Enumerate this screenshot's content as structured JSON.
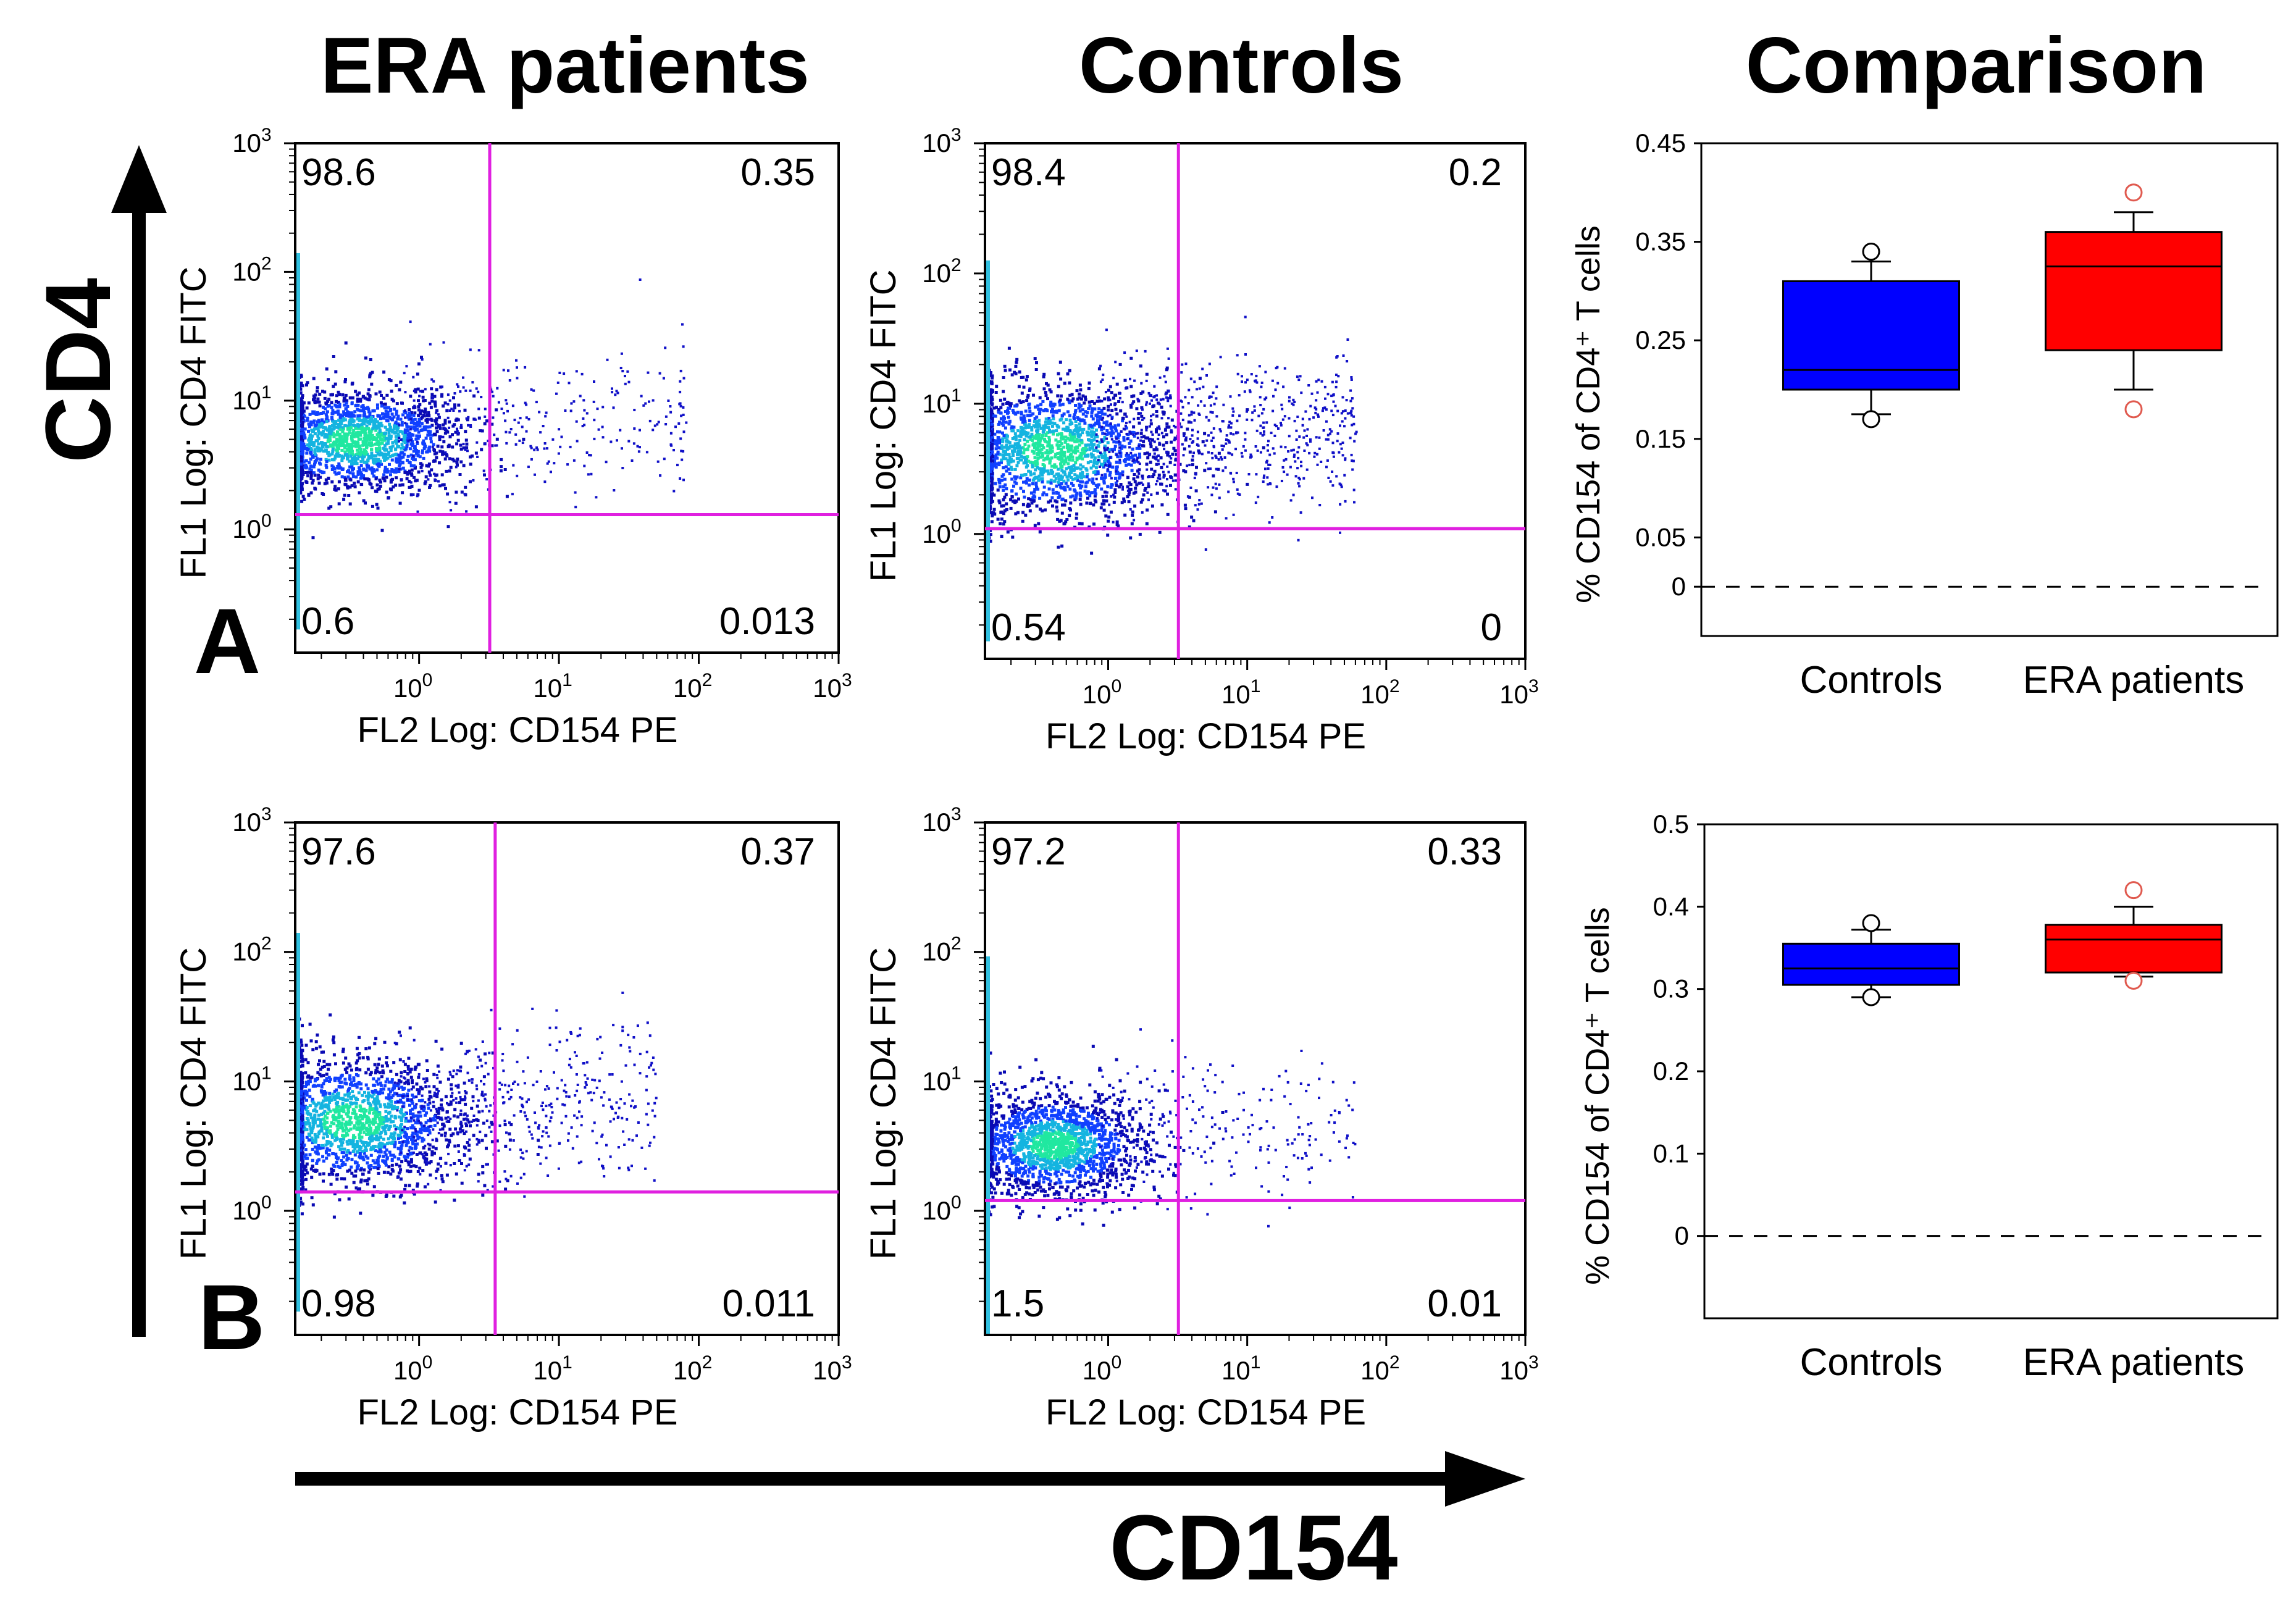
{
  "figure": {
    "column_headers": [
      "ERA patients",
      "Controls",
      "Comparison"
    ],
    "row_labels": [
      "A",
      "B"
    ],
    "vertical_axis_label": "CD4",
    "horizontal_axis_label": "CD154",
    "colors": {
      "gate": "#e020e0",
      "controls_box": "#0000ff",
      "era_box": "#ff0000",
      "era_outlier": "#e05a4f"
    }
  },
  "chart_data": [
    {
      "type": "scatter",
      "panel": "A - ERA patients",
      "xlabel": "FL2 Log: CD154 PE",
      "ylabel": "FL1 Log: CD4 FITC",
      "x_scale": "log",
      "y_scale": "log",
      "xlim": [
        0.13,
        1000
      ],
      "ylim": [
        0.11,
        1000
      ],
      "x_ticks": [
        "10^0",
        "10^1",
        "10^2",
        "10^3"
      ],
      "y_ticks": [
        "10^0",
        "10^1",
        "10^2",
        "10^3"
      ],
      "gate": {
        "x": 3.2,
        "y": 1.3
      },
      "quadrants": {
        "upper_left": "98.6",
        "upper_right": "0.35",
        "lower_left": "0.6",
        "lower_right": "0.013"
      },
      "cluster": {
        "center_x": 0.35,
        "center_y": 5.0,
        "spread_x": 0.38,
        "spread_y": 0.2,
        "tail_max_x": 80,
        "tail_count": 300
      }
    },
    {
      "type": "scatter",
      "panel": "A - Controls",
      "xlabel": "FL2 Log: CD154 PE",
      "ylabel": "FL1 Log: CD4 FITC",
      "x_scale": "log",
      "y_scale": "log",
      "xlim": [
        0.13,
        1000
      ],
      "ylim": [
        0.11,
        1000
      ],
      "x_ticks": [
        "10^0",
        "10^1",
        "10^2",
        "10^3"
      ],
      "y_ticks": [
        "10^0",
        "10^1",
        "10^2",
        "10^3"
      ],
      "gate": {
        "x": 3.2,
        "y": 1.1
      },
      "quadrants": {
        "upper_left": "98.4",
        "upper_right": "0.2",
        "lower_left": "0.54",
        "lower_right": "0"
      },
      "cluster": {
        "center_x": 0.4,
        "center_y": 4.5,
        "spread_x": 0.42,
        "spread_y": 0.26,
        "tail_max_x": 60,
        "tail_count": 650
      }
    },
    {
      "type": "scatter",
      "panel": "B - ERA patients",
      "xlabel": "FL2 Log: CD154 PE",
      "ylabel": "FL1 Log: CD4 FITC",
      "x_scale": "log",
      "y_scale": "log",
      "xlim": [
        0.13,
        1000
      ],
      "ylim": [
        0.11,
        1000
      ],
      "x_ticks": [
        "10^0",
        "10^1",
        "10^2",
        "10^3"
      ],
      "y_ticks": [
        "10^0",
        "10^1",
        "10^2",
        "10^3"
      ],
      "gate": {
        "x": 3.5,
        "y": 1.4
      },
      "quadrants": {
        "upper_left": "97.6",
        "upper_right": "0.37",
        "lower_left": "0.98",
        "lower_right": "0.011"
      },
      "cluster": {
        "center_x": 0.33,
        "center_y": 5.0,
        "spread_x": 0.4,
        "spread_y": 0.25,
        "tail_max_x": 50,
        "tail_count": 450
      }
    },
    {
      "type": "scatter",
      "panel": "B - Controls",
      "xlabel": "FL2 Log: CD154 PE",
      "ylabel": "FL1 Log: CD4 FITC",
      "x_scale": "log",
      "y_scale": "log",
      "xlim": [
        0.13,
        1000
      ],
      "ylim": [
        0.11,
        1000
      ],
      "x_ticks": [
        "10^0",
        "10^1",
        "10^2",
        "10^3"
      ],
      "y_ticks": [
        "10^0",
        "10^1",
        "10^2",
        "10^3"
      ],
      "gate": {
        "x": 3.2,
        "y": 1.2
      },
      "quadrants": {
        "upper_left": "97.2",
        "upper_right": "0.33",
        "lower_left": "1.5",
        "lower_right": "0.01"
      },
      "cluster": {
        "center_x": 0.4,
        "center_y": 3.3,
        "spread_x": 0.32,
        "spread_y": 0.2,
        "tail_max_x": 60,
        "tail_count": 220
      }
    },
    {
      "type": "box",
      "panel": "A - Comparison",
      "ylabel": "% CD154 of CD4⁺ T cells",
      "categories": [
        "Controls",
        "ERA patients"
      ],
      "ylim": [
        -0.05,
        0.45
      ],
      "yticks": [
        "0",
        "0.05",
        "0.15",
        "0.25",
        "0.35",
        "0.45"
      ],
      "reference_line": 0,
      "boxes": [
        {
          "name": "Controls",
          "q1": 0.2,
          "median": 0.22,
          "q3": 0.31,
          "whisker_low": 0.175,
          "whisker_high": 0.33,
          "outliers": [
            0.17,
            0.34
          ]
        },
        {
          "name": "ERA patients",
          "q1": 0.24,
          "median": 0.325,
          "q3": 0.36,
          "whisker_low": 0.2,
          "whisker_high": 0.38,
          "outliers": [
            0.18,
            0.4
          ]
        }
      ]
    },
    {
      "type": "box",
      "panel": "B - Comparison",
      "ylabel": "% CD154 of CD4⁺ T cells",
      "categories": [
        "Controls",
        "ERA patients"
      ],
      "ylim": [
        -0.1,
        0.5
      ],
      "yticks": [
        "0",
        "0.1",
        "0.2",
        "0.3",
        "0.4",
        "0.5"
      ],
      "reference_line": 0,
      "boxes": [
        {
          "name": "Controls",
          "q1": 0.305,
          "median": 0.325,
          "q3": 0.355,
          "whisker_low": 0.29,
          "whisker_high": 0.372,
          "outliers": [
            0.29,
            0.38
          ]
        },
        {
          "name": "ERA patients",
          "q1": 0.32,
          "median": 0.36,
          "q3": 0.378,
          "whisker_low": 0.315,
          "whisker_high": 0.4,
          "outliers": [
            0.31,
            0.42
          ]
        }
      ]
    }
  ]
}
